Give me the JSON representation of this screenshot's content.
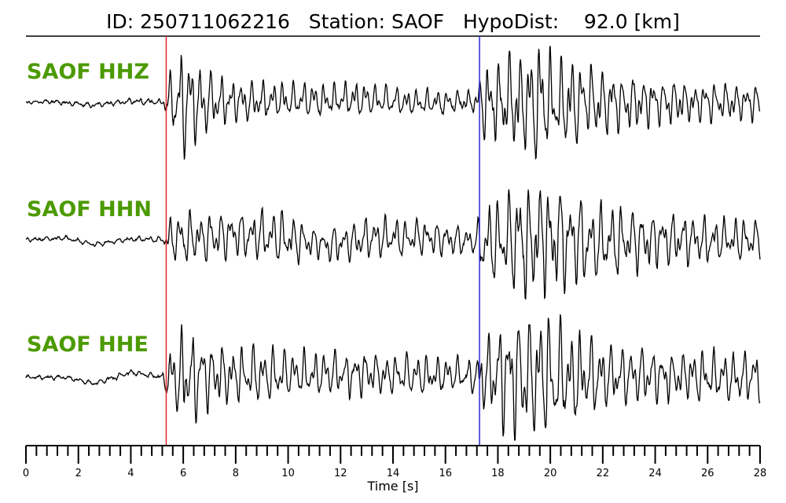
{
  "chart_data": {
    "type": "line",
    "title": "ID: 250711062216   Station: SAOF   HypoDist:    92.0 [km]",
    "xlabel": "Time [s]",
    "ylabel": "",
    "xlim": [
      0,
      28
    ],
    "x_major_ticks": [
      0,
      2,
      4,
      6,
      8,
      10,
      12,
      14,
      16,
      18,
      20,
      22,
      24,
      26,
      28
    ],
    "x_minor_step": 0.4,
    "grid": false,
    "label_color": "#4c9a00",
    "trace_color": "#000000",
    "p_pick": {
      "time": 5.35,
      "color": "#e8262b"
    },
    "s_pick": {
      "time": 17.3,
      "color": "#2b2bd6"
    },
    "traces": [
      {
        "name": "SAOF HHZ",
        "envelope": [
          [
            0,
            0.03
          ],
          [
            5.2,
            0.05
          ],
          [
            5.4,
            0.35
          ],
          [
            6.0,
            0.95
          ],
          [
            6.8,
            0.55
          ],
          [
            8,
            0.35
          ],
          [
            10,
            0.3
          ],
          [
            12,
            0.28
          ],
          [
            14,
            0.25
          ],
          [
            16,
            0.2
          ],
          [
            17.2,
            0.18
          ],
          [
            17.3,
            0.55
          ],
          [
            18.5,
            0.85
          ],
          [
            19.5,
            1.0
          ],
          [
            20.5,
            0.75
          ],
          [
            22,
            0.55
          ],
          [
            25,
            0.35
          ],
          [
            28,
            0.3
          ]
        ],
        "drift": [
          [
            0,
            0.0
          ],
          [
            1,
            0.02
          ],
          [
            2.5,
            -0.1
          ],
          [
            4,
            0.03
          ],
          [
            5.3,
            0.0
          ],
          [
            10,
            0.05
          ],
          [
            13,
            0.08
          ],
          [
            15,
            -0.02
          ],
          [
            16.5,
            0.0
          ],
          [
            28,
            0.0
          ]
        ],
        "seed": 17
      },
      {
        "name": "SAOF HHN",
        "envelope": [
          [
            0,
            0.03
          ],
          [
            5.2,
            0.05
          ],
          [
            5.4,
            0.3
          ],
          [
            6.0,
            0.45
          ],
          [
            8,
            0.4
          ],
          [
            10,
            0.45
          ],
          [
            11,
            0.25
          ],
          [
            13,
            0.35
          ],
          [
            15,
            0.3
          ],
          [
            17.2,
            0.22
          ],
          [
            17.3,
            0.55
          ],
          [
            18.5,
            0.9
          ],
          [
            19.5,
            1.0
          ],
          [
            20.5,
            0.85
          ],
          [
            22,
            0.65
          ],
          [
            25,
            0.4
          ],
          [
            28,
            0.35
          ]
        ],
        "drift": [
          [
            0,
            0.0
          ],
          [
            1.5,
            0.05
          ],
          [
            2.6,
            -0.15
          ],
          [
            4,
            0.02
          ],
          [
            5.3,
            0.0
          ],
          [
            8,
            0.15
          ],
          [
            10,
            0.05
          ],
          [
            11.5,
            -0.2
          ],
          [
            13,
            0.05
          ],
          [
            15,
            0.05
          ],
          [
            17,
            -0.05
          ],
          [
            28,
            0.0
          ]
        ],
        "seed": 43
      },
      {
        "name": "SAOF HHE",
        "envelope": [
          [
            0,
            0.03
          ],
          [
            5.2,
            0.05
          ],
          [
            5.4,
            0.45
          ],
          [
            6.0,
            0.85
          ],
          [
            7,
            0.55
          ],
          [
            9,
            0.45
          ],
          [
            11,
            0.4
          ],
          [
            14,
            0.35
          ],
          [
            17.2,
            0.3
          ],
          [
            17.3,
            0.6
          ],
          [
            18.5,
            1.0
          ],
          [
            20,
            1.0
          ],
          [
            21,
            0.8
          ],
          [
            22,
            0.55
          ],
          [
            25,
            0.4
          ],
          [
            28,
            0.45
          ]
        ],
        "drift": [
          [
            0,
            0.0
          ],
          [
            1.5,
            0.0
          ],
          [
            2.6,
            -0.2
          ],
          [
            4,
            0.15
          ],
          [
            5.3,
            0.0
          ],
          [
            10,
            0.1
          ],
          [
            13,
            0.1
          ],
          [
            16,
            0.05
          ],
          [
            28,
            0.0
          ]
        ],
        "seed": 91
      }
    ]
  }
}
